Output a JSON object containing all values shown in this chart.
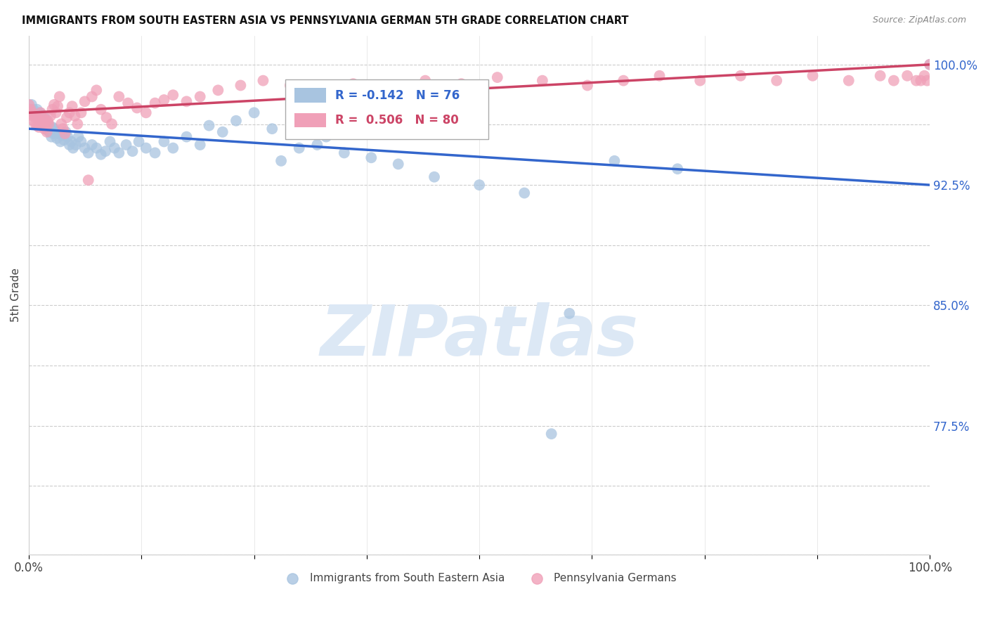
{
  "title": "IMMIGRANTS FROM SOUTH EASTERN ASIA VS PENNSYLVANIA GERMAN 5TH GRADE CORRELATION CHART",
  "source": "Source: ZipAtlas.com",
  "ylabel": "5th Grade",
  "ytick_labels_show": [
    0.775,
    0.85,
    0.925,
    1.0
  ],
  "xlim": [
    0.0,
    1.0
  ],
  "ylim": [
    0.695,
    1.018
  ],
  "blue_R": -0.142,
  "blue_N": 76,
  "pink_R": 0.506,
  "pink_N": 80,
  "blue_label": "Immigrants from South Eastern Asia",
  "pink_label": "Pennsylvania Germans",
  "blue_color": "#a8c4e0",
  "pink_color": "#f0a0b8",
  "blue_line_color": "#3366cc",
  "pink_line_color": "#cc4466",
  "watermark": "ZIPatlas",
  "watermark_color": "#dce8f5",
  "background_color": "#ffffff",
  "blue_x": [
    0.003,
    0.005,
    0.007,
    0.008,
    0.009,
    0.01,
    0.011,
    0.012,
    0.013,
    0.014,
    0.015,
    0.016,
    0.017,
    0.018,
    0.019,
    0.02,
    0.021,
    0.022,
    0.023,
    0.024,
    0.025,
    0.026,
    0.027,
    0.028,
    0.03,
    0.031,
    0.033,
    0.035,
    0.037,
    0.039,
    0.041,
    0.043,
    0.045,
    0.047,
    0.049,
    0.052,
    0.055,
    0.058,
    0.062,
    0.066,
    0.07,
    0.075,
    0.08,
    0.085,
    0.09,
    0.095,
    0.1,
    0.108,
    0.115,
    0.122,
    0.13,
    0.14,
    0.15,
    0.16,
    0.175,
    0.19,
    0.2,
    0.215,
    0.23,
    0.25,
    0.27,
    0.3,
    0.33,
    0.28,
    0.32,
    0.35,
    0.38,
    0.41,
    0.45,
    0.5,
    0.55,
    0.6,
    0.65,
    0.72,
    0.58,
    1.0
  ],
  "blue_y": [
    0.975,
    0.972,
    0.97,
    0.968,
    0.972,
    0.969,
    0.966,
    0.97,
    0.967,
    0.965,
    0.963,
    0.968,
    0.964,
    0.961,
    0.966,
    0.963,
    0.959,
    0.962,
    0.958,
    0.96,
    0.955,
    0.961,
    0.957,
    0.96,
    0.958,
    0.954,
    0.957,
    0.952,
    0.956,
    0.953,
    0.958,
    0.955,
    0.95,
    0.952,
    0.948,
    0.95,
    0.955,
    0.952,
    0.948,
    0.945,
    0.95,
    0.948,
    0.944,
    0.946,
    0.952,
    0.948,
    0.945,
    0.95,
    0.946,
    0.952,
    0.948,
    0.945,
    0.952,
    0.948,
    0.955,
    0.95,
    0.962,
    0.958,
    0.965,
    0.97,
    0.96,
    0.948,
    0.955,
    0.94,
    0.95,
    0.945,
    0.942,
    0.938,
    0.93,
    0.925,
    0.92,
    0.845,
    0.94,
    0.935,
    0.77,
    1.0
  ],
  "pink_x": [
    0.0,
    0.002,
    0.003,
    0.004,
    0.005,
    0.006,
    0.007,
    0.008,
    0.009,
    0.01,
    0.011,
    0.012,
    0.013,
    0.014,
    0.015,
    0.016,
    0.017,
    0.018,
    0.019,
    0.02,
    0.021,
    0.022,
    0.024,
    0.026,
    0.028,
    0.03,
    0.032,
    0.034,
    0.036,
    0.038,
    0.04,
    0.042,
    0.045,
    0.048,
    0.051,
    0.054,
    0.058,
    0.062,
    0.066,
    0.07,
    0.075,
    0.08,
    0.086,
    0.092,
    0.1,
    0.11,
    0.12,
    0.13,
    0.14,
    0.15,
    0.16,
    0.175,
    0.19,
    0.21,
    0.235,
    0.26,
    0.29,
    0.32,
    0.36,
    0.4,
    0.44,
    0.48,
    0.52,
    0.57,
    0.62,
    0.66,
    0.7,
    0.745,
    0.79,
    0.83,
    0.87,
    0.91,
    0.945,
    0.96,
    0.975,
    0.985,
    0.99,
    0.994,
    0.997,
    1.0
  ],
  "pink_y": [
    0.975,
    0.972,
    0.97,
    0.968,
    0.965,
    0.968,
    0.963,
    0.967,
    0.962,
    0.966,
    0.961,
    0.965,
    0.97,
    0.962,
    0.967,
    0.963,
    0.96,
    0.965,
    0.961,
    0.958,
    0.965,
    0.963,
    0.968,
    0.972,
    0.975,
    0.97,
    0.974,
    0.98,
    0.963,
    0.96,
    0.957,
    0.967,
    0.97,
    0.974,
    0.968,
    0.963,
    0.97,
    0.977,
    0.928,
    0.98,
    0.984,
    0.972,
    0.967,
    0.963,
    0.98,
    0.976,
    0.973,
    0.97,
    0.976,
    0.978,
    0.981,
    0.977,
    0.98,
    0.984,
    0.987,
    0.99,
    0.987,
    0.984,
    0.988,
    0.985,
    0.99,
    0.988,
    0.992,
    0.99,
    0.987,
    0.99,
    0.993,
    0.99,
    0.993,
    0.99,
    0.993,
    0.99,
    0.993,
    0.99,
    0.993,
    0.99,
    0.99,
    0.993,
    0.99,
    1.0
  ]
}
